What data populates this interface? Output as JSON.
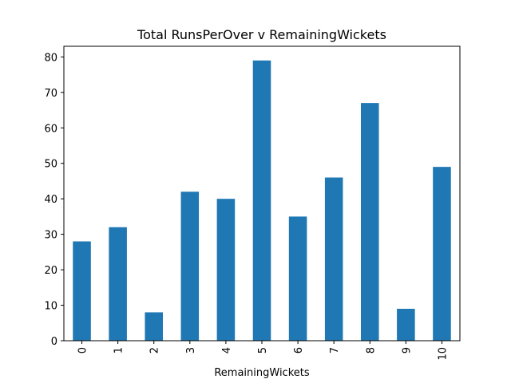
{
  "chart_data": {
    "type": "bar",
    "title": "Total RunsPerOver v RemainingWickets",
    "xlabel": "RemainingWickets",
    "ylabel": "",
    "categories": [
      "0",
      "1",
      "2",
      "3",
      "4",
      "5",
      "6",
      "7",
      "8",
      "9",
      "10"
    ],
    "values": [
      28,
      32,
      8,
      42,
      40,
      79,
      35,
      46,
      67,
      9,
      49
    ],
    "ylim": [
      0,
      83
    ],
    "yticks": [
      0,
      10,
      20,
      30,
      40,
      50,
      60,
      70,
      80
    ],
    "grid": false,
    "legend": "none",
    "bar_color": "#1f77b4",
    "x_tick_rotation": "vertical"
  }
}
